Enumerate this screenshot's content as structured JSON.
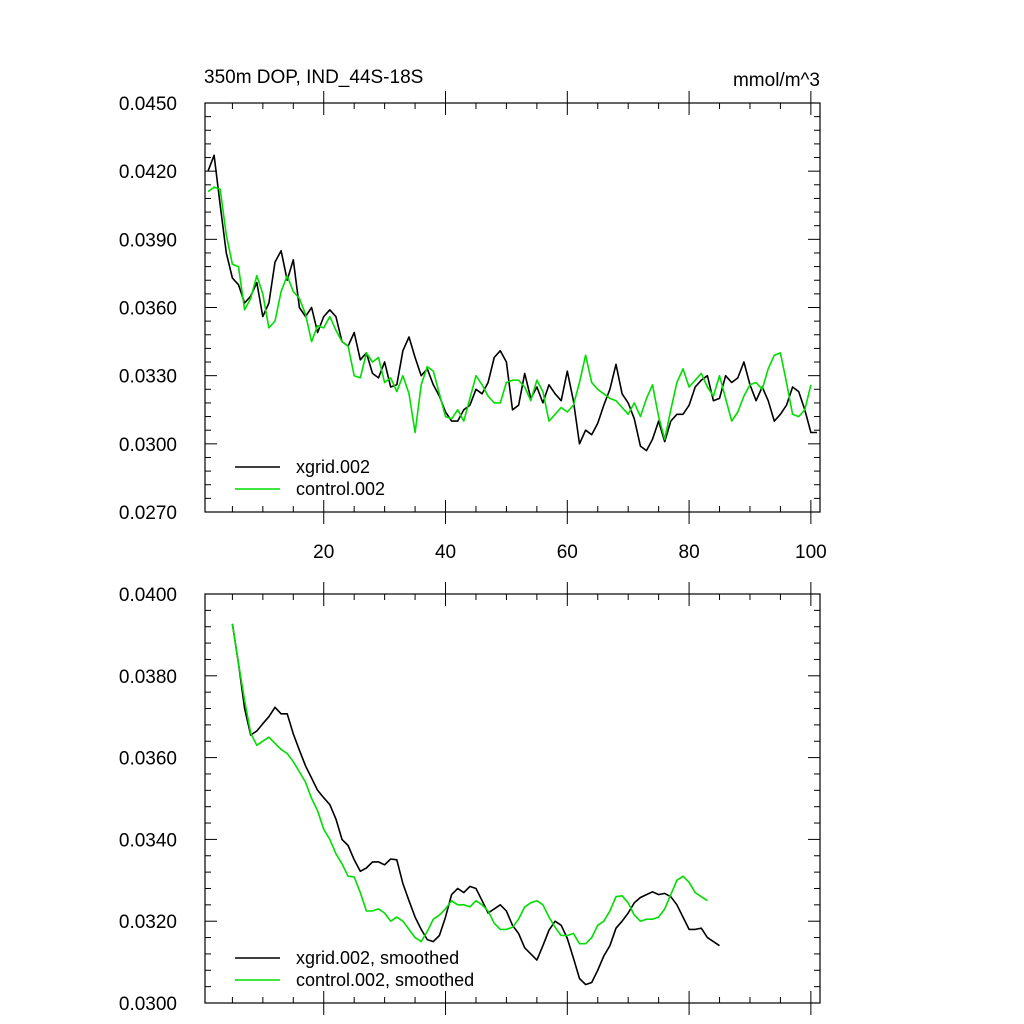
{
  "figure": {
    "title_left": "350m DOP, IND_44S-18S",
    "title_right": "mmol/m^3"
  },
  "colors": {
    "xgrid": "#000000",
    "control": "#00dd00",
    "axis": "#000000"
  },
  "chart_data": [
    {
      "type": "line",
      "panel": "top",
      "title": "350m DOP, IND_44S-18S",
      "units": "mmol/m^3",
      "xlim": [
        0.5,
        101.5
      ],
      "ylim": [
        0.027,
        0.045
      ],
      "yticks": [
        0.027,
        0.03,
        0.033,
        0.036,
        0.039,
        0.042,
        0.045
      ],
      "ytick_labels": [
        "0.0270",
        "0.0300",
        "0.0330",
        "0.0360",
        "0.0390",
        "0.0420",
        "0.0450"
      ],
      "xticks": [
        20,
        40,
        60,
        80,
        100
      ],
      "xtick_labels": [
        "20",
        "40",
        "60",
        "80",
        "100"
      ],
      "legend": "bottom-left",
      "series": [
        {
          "name": "xgrid.002",
          "color": "#000000",
          "x_start": 1,
          "values": [
            0.042,
            0.0427,
            0.0405,
            0.0384,
            0.0373,
            0.037,
            0.0362,
            0.0365,
            0.0371,
            0.0356,
            0.0362,
            0.038,
            0.0385,
            0.0372,
            0.0381,
            0.036,
            0.0356,
            0.036,
            0.0349,
            0.0356,
            0.0359,
            0.0356,
            0.0345,
            0.0343,
            0.0349,
            0.0337,
            0.034,
            0.0331,
            0.0329,
            0.0336,
            0.0325,
            0.0326,
            0.0341,
            0.0347,
            0.0338,
            0.033,
            0.0333,
            0.0326,
            0.0321,
            0.0314,
            0.031,
            0.031,
            0.0315,
            0.0317,
            0.0324,
            0.0322,
            0.0327,
            0.0338,
            0.0341,
            0.0336,
            0.0315,
            0.0317,
            0.0331,
            0.032,
            0.0325,
            0.0318,
            0.0326,
            0.0322,
            0.0319,
            0.0332,
            0.0319,
            0.03,
            0.0306,
            0.0304,
            0.0309,
            0.0317,
            0.0324,
            0.0335,
            0.0322,
            0.0318,
            0.0311,
            0.0299,
            0.0297,
            0.0302,
            0.031,
            0.0301,
            0.031,
            0.0313,
            0.0313,
            0.0317,
            0.0325,
            0.0328,
            0.033,
            0.0319,
            0.032,
            0.033,
            0.0327,
            0.0329,
            0.0336,
            0.0326,
            0.0319,
            0.0325,
            0.0319,
            0.031,
            0.0313,
            0.0317,
            0.0325,
            0.0323,
            0.0315,
            0.0305,
            0.0305
          ]
        },
        {
          "name": "control.002",
          "color": "#00dd00",
          "x_start": 1,
          "values": [
            0.0411,
            0.0413,
            0.0412,
            0.0392,
            0.0379,
            0.0378,
            0.0359,
            0.0364,
            0.0374,
            0.0366,
            0.0351,
            0.0354,
            0.0367,
            0.0374,
            0.0367,
            0.0364,
            0.0357,
            0.0345,
            0.0352,
            0.0351,
            0.0356,
            0.035,
            0.0345,
            0.0343,
            0.033,
            0.0329,
            0.034,
            0.0336,
            0.0338,
            0.0327,
            0.0329,
            0.0323,
            0.033,
            0.0322,
            0.0305,
            0.0326,
            0.0334,
            0.0332,
            0.0322,
            0.0312,
            0.0311,
            0.0315,
            0.031,
            0.032,
            0.033,
            0.0326,
            0.0321,
            0.0318,
            0.0318,
            0.0327,
            0.0328,
            0.0328,
            0.0325,
            0.0319,
            0.0328,
            0.0323,
            0.031,
            0.0313,
            0.0316,
            0.0314,
            0.0317,
            0.0327,
            0.0339,
            0.0327,
            0.0324,
            0.0322,
            0.032,
            0.0319,
            0.0316,
            0.0313,
            0.0318,
            0.0312,
            0.032,
            0.0326,
            0.0312,
            0.0302,
            0.0315,
            0.0327,
            0.0333,
            0.0325,
            0.0328,
            0.0331,
            0.0325,
            0.0321,
            0.033,
            0.032,
            0.031,
            0.0314,
            0.0321,
            0.0326,
            0.0327,
            0.0324,
            0.0333,
            0.0339,
            0.034,
            0.0327,
            0.0313,
            0.0312,
            0.0315,
            0.0326
          ]
        }
      ]
    },
    {
      "type": "line",
      "panel": "bottom",
      "xlim": [
        0.5,
        101.5
      ],
      "ylim": [
        0.03,
        0.04
      ],
      "yticks": [
        0.03,
        0.032,
        0.034,
        0.036,
        0.038,
        0.04
      ],
      "ytick_labels": [
        "0.0300",
        "0.0320",
        "0.0340",
        "0.0360",
        "0.0380",
        "0.0400"
      ],
      "xticks": [
        20,
        40,
        60,
        80,
        100
      ],
      "legend": "bottom-left",
      "series": [
        {
          "name": "xgrid.002, smoothed",
          "color": "#000000",
          "x_start": 5,
          "values": [
            0.03927,
            0.0383,
            0.0372,
            0.03655,
            0.03665,
            0.03683,
            0.037,
            0.03723,
            0.03707,
            0.03707,
            0.03658,
            0.03618,
            0.0358,
            0.0355,
            0.0352,
            0.03502,
            0.03485,
            0.0345,
            0.034,
            0.03385,
            0.0335,
            0.03322,
            0.0333,
            0.03345,
            0.03345,
            0.03338,
            0.03352,
            0.0335,
            0.03292,
            0.0325,
            0.0321,
            0.0318,
            0.03155,
            0.0315,
            0.03165,
            0.0321,
            0.03265,
            0.0328,
            0.0327,
            0.03285,
            0.0328,
            0.0325,
            0.0322,
            0.0323,
            0.0324,
            0.03225,
            0.0319,
            0.0317,
            0.03135,
            0.0312,
            0.03105,
            0.0314,
            0.03178,
            0.032,
            0.0319,
            0.03158,
            0.0311,
            0.0306,
            0.03045,
            0.0305,
            0.0308,
            0.03115,
            0.0314,
            0.03183,
            0.032,
            0.0322,
            0.03245,
            0.03258,
            0.03265,
            0.03272,
            0.03265,
            0.03268,
            0.0326,
            0.0324,
            0.0321,
            0.0318,
            0.0318,
            0.03183,
            0.0316,
            0.0315,
            0.0314
          ]
        },
        {
          "name": "control.002, smoothed",
          "color": "#00dd00",
          "x_start": 5,
          "values": [
            0.03927,
            0.0383,
            0.0374,
            0.0366,
            0.0363,
            0.0364,
            0.0365,
            0.03635,
            0.0362,
            0.0361,
            0.0359,
            0.03565,
            0.0354,
            0.035,
            0.0347,
            0.03425,
            0.034,
            0.03365,
            0.0334,
            0.0331,
            0.03308,
            0.0327,
            0.03225,
            0.03225,
            0.0323,
            0.0322,
            0.032,
            0.0321,
            0.032,
            0.0318,
            0.0316,
            0.0315,
            0.03175,
            0.03205,
            0.03215,
            0.0323,
            0.0325,
            0.0324,
            0.0324,
            0.03235,
            0.0325,
            0.0324,
            0.03225,
            0.03195,
            0.0318,
            0.0318,
            0.03185,
            0.03205,
            0.03235,
            0.03245,
            0.0325,
            0.0324,
            0.0321,
            0.03185,
            0.03165,
            0.03165,
            0.0317,
            0.03145,
            0.03145,
            0.0316,
            0.0319,
            0.032,
            0.03225,
            0.0326,
            0.03262,
            0.03245,
            0.03215,
            0.032,
            0.03205,
            0.03205,
            0.0321,
            0.0323,
            0.03265,
            0.033,
            0.0331,
            0.03295,
            0.0327,
            0.0326,
            0.0325
          ]
        }
      ]
    }
  ]
}
